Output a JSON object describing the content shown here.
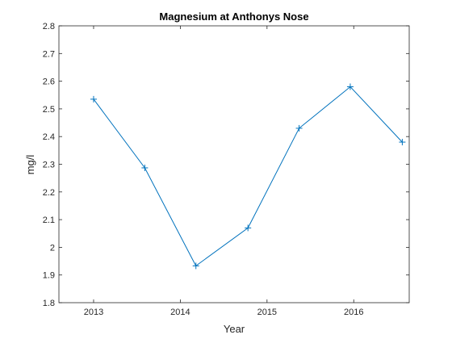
{
  "chart_data": {
    "type": "line",
    "title": "Magnesium at Anthonys Nose",
    "xlabel": "Year",
    "ylabel": "mg/l",
    "xlim": [
      2012.6,
      2016.64
    ],
    "ylim": [
      1.8,
      2.8
    ],
    "xticks": [
      2013,
      2014,
      2015,
      2016
    ],
    "yticks": [
      1.8,
      1.9,
      2,
      2.1,
      2.2,
      2.3,
      2.4,
      2.5,
      2.6,
      2.7,
      2.8
    ],
    "xtick_labels": [
      "2013",
      "2014",
      "2015",
      "2016"
    ],
    "ytick_labels": [
      "1.8",
      "1.9",
      "2",
      "2.1",
      "2.2",
      "2.3",
      "2.4",
      "2.5",
      "2.6",
      "2.7",
      "2.8"
    ],
    "grid": false,
    "series": [
      {
        "name": "Magnesium",
        "color": "#0072BD",
        "marker": "plus",
        "x": [
          2013.0,
          2013.59,
          2014.18,
          2014.78,
          2015.37,
          2015.96,
          2016.56
        ],
        "y": [
          2.535,
          2.287,
          1.933,
          2.07,
          2.43,
          2.58,
          2.38
        ]
      }
    ]
  }
}
